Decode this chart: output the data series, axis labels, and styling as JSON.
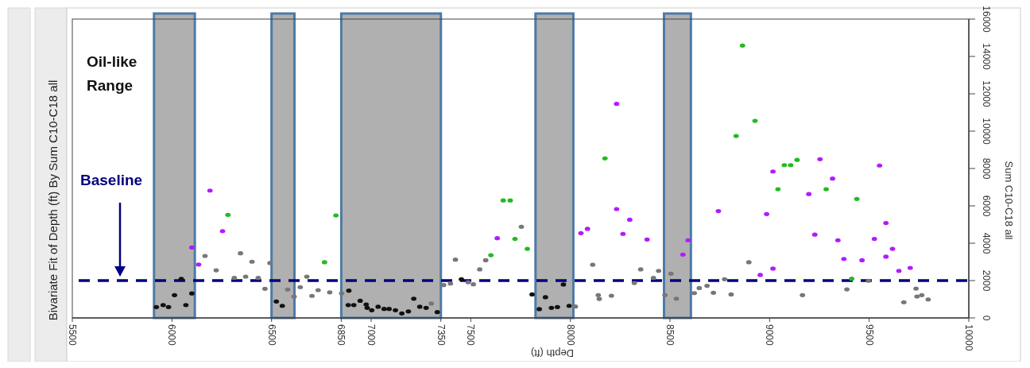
{
  "chart_data": {
    "type": "scatter",
    "title": "Bivariate Fit of Depth (ft) By Sum C10-C18 all",
    "xlabel": "Depth (ft)",
    "ylabel": "Sum C10-C18 all",
    "xlim": [
      5500,
      10000
    ],
    "ylim": [
      0,
      16000
    ],
    "xticks": [
      5500,
      6000,
      6500,
      6850,
      7000,
      7350,
      7500,
      8000,
      8500,
      9000,
      9500,
      10000
    ],
    "yticks": [
      0,
      2000,
      4000,
      6000,
      8000,
      10000,
      12000,
      14000,
      16000
    ],
    "grid": false,
    "marker": "circle",
    "annotations": [
      "Oil-like Range"
    ],
    "ref_lines": [
      {
        "axis": "y",
        "value": 2000,
        "label": "Baseline",
        "color": "#000080",
        "line_style": "dashed"
      }
    ],
    "bands": [
      {
        "axis": "x",
        "from": 5910,
        "to": 6115,
        "label": null,
        "color": "#b0b0b0"
      },
      {
        "axis": "x",
        "from": 6500,
        "to": 6615,
        "label": null,
        "color": "#b0b0b0"
      },
      {
        "axis": "x",
        "from": 6850,
        "to": 7350,
        "label": null,
        "color": "#b0b0b0"
      },
      {
        "axis": "x",
        "from": 7825,
        "to": 8015,
        "label": null,
        "color": "#b0b0b0"
      },
      {
        "axis": "x",
        "from": 8470,
        "to": 8605,
        "label": null,
        "color": "#b0b0b0"
      }
    ],
    "series": [
      {
        "color": "#111111",
        "x": [
          5922,
          5956,
          5983,
          6013,
          6047,
          6070,
          6100,
          6524,
          6554,
          6888,
          6885,
          6913,
          6945,
          6975,
          6980,
          7003,
          7035,
          7065,
          7090,
          7122,
          7154,
          7187,
          7214,
          7244,
          7276,
          7332,
          7453,
          7808,
          7844,
          7875,
          7905,
          7935,
          7965,
          7994
        ],
        "values": [
          580,
          690,
          580,
          1220,
          2090,
          690,
          1310,
          880,
          650,
          1460,
          690,
          690,
          920,
          720,
          540,
          410,
          600,
          480,
          480,
          410,
          240,
          350,
          1030,
          600,
          540,
          310,
          2070,
          1260,
          470,
          1110,
          540,
          580,
          1790,
          650
        ]
      },
      {
        "color": "#777777",
        "x": [
          6166,
          6222,
          6313,
          6344,
          6370,
          6402,
          6433,
          6467,
          6492,
          6581,
          6613,
          6644,
          6677,
          6703,
          6734,
          6792,
          6852,
          7302,
          7364,
          7398,
          7423,
          7487,
          7513,
          7545,
          7575,
          7754,
          8025,
          8112,
          8140,
          8145,
          8206,
          8321,
          8353,
          8417,
          8443,
          8475,
          8505,
          8532,
          8622,
          8647,
          8686,
          8718,
          8774,
          8807,
          8896,
          9165,
          9388,
          9497,
          9674,
          9735,
          9740,
          9764,
          9796
        ],
        "values": [
          3320,
          2550,
          2140,
          3460,
          2210,
          3010,
          2140,
          1560,
          2940,
          1520,
          1140,
          1650,
          2210,
          1180,
          1490,
          1370,
          1320,
          770,
          1760,
          1840,
          3120,
          1910,
          1800,
          2600,
          3090,
          4880,
          610,
          2850,
          1220,
          1020,
          1190,
          1870,
          2600,
          2140,
          2520,
          1220,
          2370,
          1030,
          1330,
          1600,
          1720,
          1350,
          2070,
          1260,
          2980,
          1220,
          1530,
          1990,
          840,
          1570,
          1150,
          1220,
          990
        ]
      },
      {
        "color": "#b31aff",
        "x": [
          6100,
          6134,
          6191,
          6254,
          7633,
          8053,
          8086,
          8232,
          8232,
          8264,
          8298,
          8385,
          8565,
          8591,
          8743,
          8953,
          8985,
          9017,
          9017,
          9197,
          9227,
          9253,
          9316,
          9343,
          9373,
          9464,
          9526,
          9552,
          9584,
          9584,
          9617,
          9649,
          9706
        ],
        "values": [
          3770,
          2860,
          6820,
          4650,
          4270,
          4540,
          4770,
          11460,
          5830,
          4500,
          5260,
          4200,
          3390,
          4160,
          5720,
          2300,
          5560,
          7840,
          2640,
          6630,
          4460,
          8500,
          7460,
          4160,
          3160,
          3090,
          4230,
          8160,
          5080,
          3280,
          3700,
          2520,
          2680
        ]
      },
      {
        "color": "#22bb22",
        "x": [
          6281,
          6766,
          6823,
          7601,
          7663,
          7698,
          7722,
          7784,
          8174,
          8832,
          8864,
          8927,
          9042,
          9074,
          9106,
          9138,
          9284,
          9412,
          9438
        ],
        "values": [
          5520,
          2980,
          5490,
          3360,
          6290,
          6290,
          4230,
          3700,
          8540,
          9740,
          14580,
          10550,
          6890,
          8180,
          8180,
          8460,
          6890,
          2100,
          6370
        ]
      }
    ]
  }
}
